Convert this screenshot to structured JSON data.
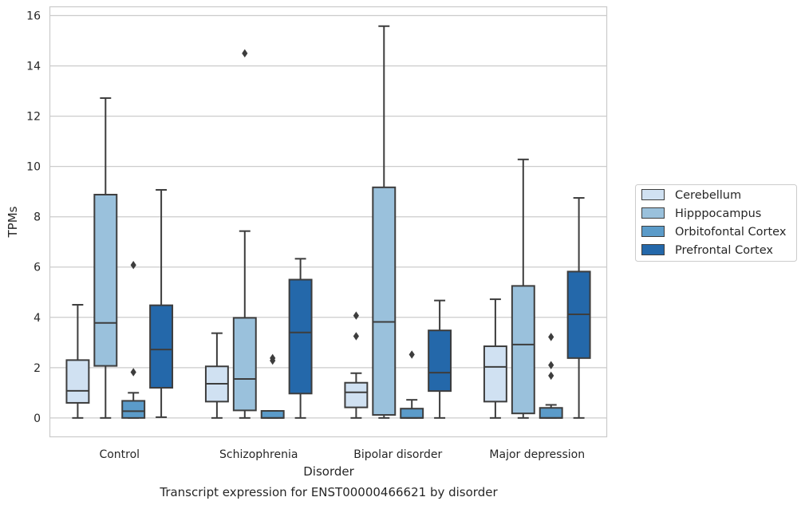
{
  "chart_data": {
    "type": "box",
    "title": "",
    "caption": "Transcript expression for ENST00000466621 by disorder",
    "xlabel": "Disorder",
    "ylabel": "TPMs",
    "ylim": [
      -0.75,
      16.35
    ],
    "yticks": [
      0,
      2,
      4,
      6,
      8,
      10,
      12,
      14,
      16
    ],
    "grid": "horizontal",
    "legend_position": "right",
    "categories": [
      "Control",
      "Schizophrenia",
      "Bipolar disorder",
      "Major depression"
    ],
    "series": [
      {
        "name": "Cerebellum",
        "color": "#d0e1f2",
        "boxes": [
          {
            "whisker_low": 0.0,
            "q1": 0.6,
            "median": 1.08,
            "q3": 2.3,
            "whisker_high": 4.5,
            "outliers": []
          },
          {
            "whisker_low": 0.0,
            "q1": 0.65,
            "median": 1.36,
            "q3": 2.05,
            "whisker_high": 3.37,
            "outliers": []
          },
          {
            "whisker_low": 0.0,
            "q1": 0.42,
            "median": 1.02,
            "q3": 1.4,
            "whisker_high": 1.78,
            "outliers": [
              3.25,
              4.07
            ]
          },
          {
            "whisker_low": 0.0,
            "q1": 0.65,
            "median": 2.03,
            "q3": 2.85,
            "whisker_high": 4.72,
            "outliers": []
          }
        ]
      },
      {
        "name": "Hipppocampus",
        "color": "#9ac1dc",
        "boxes": [
          {
            "whisker_low": 0.0,
            "q1": 2.07,
            "median": 3.78,
            "q3": 8.88,
            "whisker_high": 12.72,
            "outliers": []
          },
          {
            "whisker_low": 0.0,
            "q1": 0.3,
            "median": 1.55,
            "q3": 3.98,
            "whisker_high": 7.43,
            "outliers": [
              14.5
            ]
          },
          {
            "whisker_low": 0.0,
            "q1": 0.12,
            "median": 3.82,
            "q3": 9.17,
            "whisker_high": 15.58,
            "outliers": []
          },
          {
            "whisker_low": 0.0,
            "q1": 0.18,
            "median": 2.92,
            "q3": 5.25,
            "whisker_high": 10.28,
            "outliers": []
          }
        ]
      },
      {
        "name": "Orbitofontal Cortex",
        "color": "#5b9bc9",
        "boxes": [
          {
            "whisker_low": 0.0,
            "q1": 0.0,
            "median": 0.27,
            "q3": 0.68,
            "whisker_high": 1.0,
            "outliers": [
              1.82,
              6.08
            ]
          },
          {
            "whisker_low": 0.0,
            "q1": 0.0,
            "median": 0.0,
            "q3": 0.28,
            "whisker_high": 0.28,
            "outliers": [
              2.28,
              2.38
            ]
          },
          {
            "whisker_low": 0.0,
            "q1": 0.0,
            "median": 0.0,
            "q3": 0.37,
            "whisker_high": 0.72,
            "outliers": [
              2.52
            ]
          },
          {
            "whisker_low": 0.0,
            "q1": 0.0,
            "median": 0.0,
            "q3": 0.4,
            "whisker_high": 0.52,
            "outliers": [
              1.68,
              2.1,
              3.22
            ]
          }
        ]
      },
      {
        "name": "Prefrontal Cortex",
        "color": "#2468aa",
        "boxes": [
          {
            "whisker_low": 0.03,
            "q1": 1.2,
            "median": 2.72,
            "q3": 4.48,
            "whisker_high": 9.07,
            "outliers": []
          },
          {
            "whisker_low": 0.0,
            "q1": 0.97,
            "median": 3.4,
            "q3": 5.5,
            "whisker_high": 6.33,
            "outliers": []
          },
          {
            "whisker_low": 0.0,
            "q1": 1.07,
            "median": 1.8,
            "q3": 3.48,
            "whisker_high": 4.67,
            "outliers": []
          },
          {
            "whisker_low": 0.0,
            "q1": 2.38,
            "median": 4.12,
            "q3": 5.82,
            "whisker_high": 8.75,
            "outliers": []
          }
        ]
      }
    ]
  }
}
